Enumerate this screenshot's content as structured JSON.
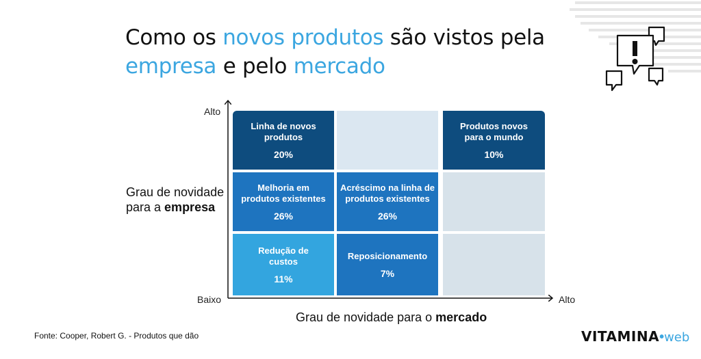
{
  "title": {
    "part1": "Como os ",
    "hl1": "novos produtos",
    "part2": " são vistos pela",
    "hl2": "empresa",
    "part3": " e pelo ",
    "hl3": "mercado"
  },
  "axes": {
    "y_high": "Alto",
    "y_low": "Baixo",
    "x_high": "Alto",
    "y_title_line1": "Grau de novidade",
    "y_title_line2_prefix": "para a ",
    "y_title_line2_bold": "empresa",
    "x_title_prefix": "Grau de novidade para o ",
    "x_title_bold": "mercado"
  },
  "cells": [
    {
      "name": "Linha de novos produtos",
      "value": "20%",
      "color": "#0e4c7e"
    },
    {
      "name": "",
      "value": "",
      "color": "#dbe7f1"
    },
    {
      "name": "Produtos novos para o mundo",
      "value": "10%",
      "color": "#0e4c7e"
    },
    {
      "name": "Melhoria em produtos existentes",
      "value": "26%",
      "color": "#1e74bf"
    },
    {
      "name": "Acréscimo na linha de produtos existentes",
      "value": "26%",
      "color": "#1e74bf"
    },
    {
      "name": "",
      "value": "",
      "color": "#d7e2ea"
    },
    {
      "name": "Redução de custos",
      "value": "11%",
      "color": "#33a5df"
    },
    {
      "name": "Reposicionamento",
      "value": "7%",
      "color": "#1e74bf"
    },
    {
      "name": "",
      "value": "",
      "color": "#d7e2ea"
    }
  ],
  "source": "Fonte: Cooper, Robert G. - Produtos que dão",
  "logo": {
    "main": "VITAMINA",
    "dot": "•",
    "web": "web"
  }
}
